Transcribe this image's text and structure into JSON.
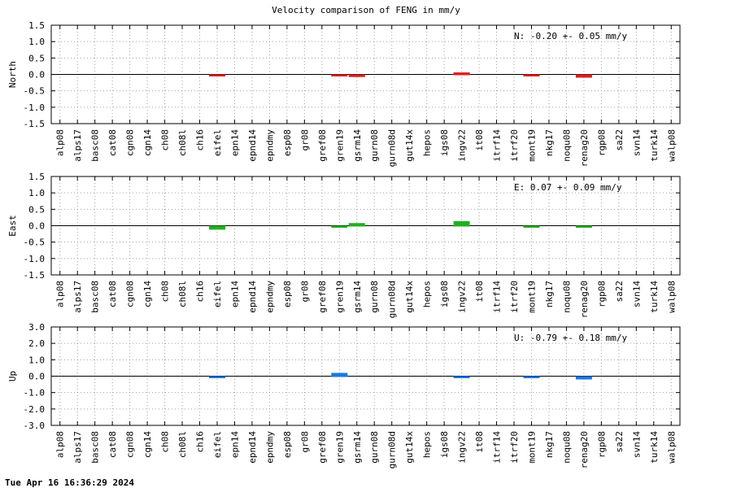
{
  "title": "Velocity comparison of FENG in mm/y",
  "footer": "Tue Apr 16 16:36:29 2024",
  "chart_data": [
    {
      "type": "bar",
      "ylabel": "North",
      "ylim": [
        -1.5,
        1.5
      ],
      "yticks": [
        "-1.5",
        "-1.0",
        "-0.5",
        "0.0",
        "0.5",
        "1.0",
        "1.5"
      ],
      "color": "#e02020",
      "annotation": "N:  -0.20 +-  0.05 mm/y",
      "grid": true,
      "categories": [
        "alp08",
        "alps17",
        "basc08",
        "cat08",
        "cgn08",
        "cgn14",
        "ch08",
        "ch08l",
        "ch16",
        "eifel",
        "epn14",
        "epnd14",
        "epndmy",
        "esp08",
        "gr08",
        "gref08",
        "gren19",
        "gsrm14",
        "gurn08",
        "gurn08d",
        "gut14x",
        "hepos",
        "igs08",
        "ingv22",
        "it08",
        "itrf14",
        "itrf20",
        "mont19",
        "nkg17",
        "noqu08",
        "renag20",
        "rgp08",
        "sa22",
        "svn14",
        "turk14",
        "walp08"
      ],
      "values": [
        null,
        null,
        null,
        null,
        null,
        null,
        null,
        null,
        null,
        -0.02,
        null,
        null,
        null,
        null,
        null,
        null,
        -0.02,
        -0.08,
        null,
        null,
        null,
        null,
        null,
        0.05,
        null,
        null,
        null,
        -0.03,
        null,
        null,
        -0.1,
        null,
        null,
        null,
        null,
        null
      ]
    },
    {
      "type": "bar",
      "ylabel": "East",
      "ylim": [
        -1.5,
        1.5
      ],
      "yticks": [
        "-1.5",
        "-1.0",
        "-0.5",
        "0.0",
        "0.5",
        "1.0",
        "1.5"
      ],
      "color": "#20b020",
      "annotation": "E:   0.07 +-  0.09 mm/y",
      "grid": true,
      "categories": [
        "alp08",
        "alps17",
        "basc08",
        "cat08",
        "cgn08",
        "cgn14",
        "ch08",
        "ch08l",
        "ch16",
        "eifel",
        "epn14",
        "epnd14",
        "epndmy",
        "esp08",
        "gr08",
        "gref08",
        "gren19",
        "gsrm14",
        "gurn08",
        "gurn08d",
        "gut14x",
        "hepos",
        "igs08",
        "ingv22",
        "it08",
        "itrf14",
        "itrf20",
        "mont19",
        "nkg17",
        "noqu08",
        "renag20",
        "rgp08",
        "sa22",
        "svn14",
        "turk14",
        "walp08"
      ],
      "values": [
        null,
        null,
        null,
        null,
        null,
        null,
        null,
        null,
        null,
        -0.12,
        null,
        null,
        null,
        null,
        null,
        null,
        -0.02,
        0.08,
        null,
        null,
        null,
        null,
        null,
        0.14,
        null,
        null,
        null,
        -0.06,
        null,
        null,
        -0.02,
        null,
        null,
        null,
        null,
        null
      ]
    },
    {
      "type": "bar",
      "ylabel": "Up",
      "ylim": [
        -3.0,
        3.0
      ],
      "yticks": [
        "-3.0",
        "-2.0",
        "-1.0",
        "0.0",
        "1.0",
        "2.0",
        "3.0"
      ],
      "color": "#1a78e0",
      "annotation": "U:  -0.79 +-  0.18 mm/y",
      "grid": true,
      "categories": [
        "alp08",
        "alps17",
        "basc08",
        "cat08",
        "cgn08",
        "cgn14",
        "ch08",
        "ch08l",
        "ch16",
        "eifel",
        "epn14",
        "epnd14",
        "epndmy",
        "esp08",
        "gr08",
        "gref08",
        "gren19",
        "gsrm14",
        "gurn08",
        "gurn08d",
        "gut14x",
        "hepos",
        "igs08",
        "ingv22",
        "it08",
        "itrf14",
        "itrf20",
        "mont19",
        "nkg17",
        "noqu08",
        "renag20",
        "rgp08",
        "sa22",
        "svn14",
        "turk14",
        "walp08"
      ],
      "values": [
        null,
        null,
        null,
        null,
        null,
        null,
        null,
        null,
        null,
        -0.1,
        null,
        null,
        null,
        null,
        null,
        null,
        0.2,
        null,
        null,
        null,
        null,
        null,
        null,
        -0.1,
        null,
        null,
        null,
        -0.1,
        null,
        null,
        -0.2,
        null,
        null,
        null,
        null,
        null
      ]
    }
  ]
}
